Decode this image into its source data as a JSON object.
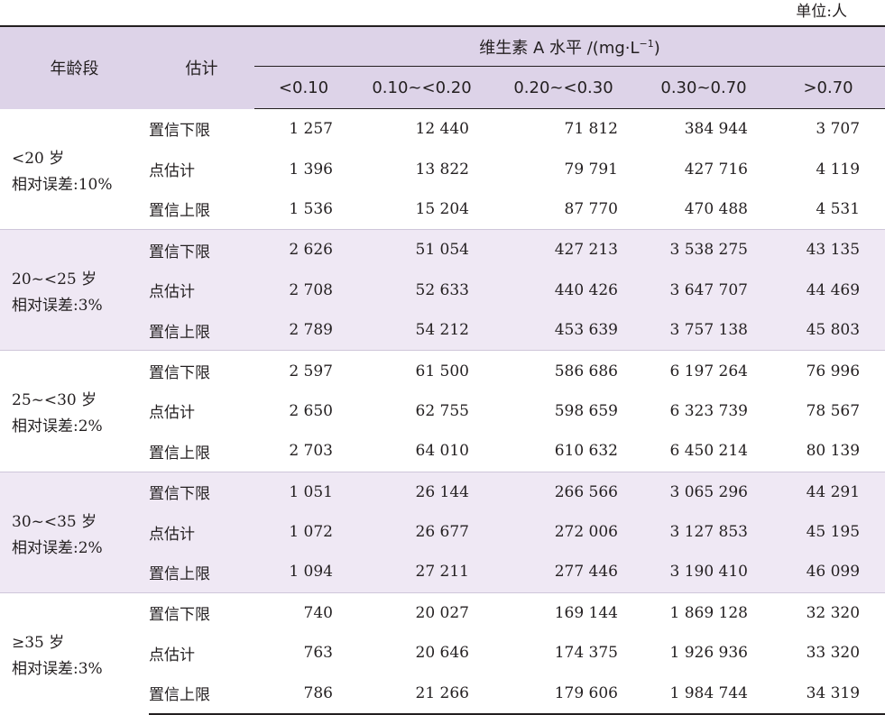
{
  "unit_label": "单位:人",
  "header": {
    "age_col": "年龄段",
    "est_col": "估计",
    "group_label": "维生素 A 水平 /(mg·L",
    "group_sup": "−1",
    "group_close": ")",
    "levels": [
      "<0.10",
      "0.10~<0.20",
      "0.20~<0.30",
      "0.30~0.70",
      ">0.70"
    ]
  },
  "groups": [
    {
      "age": "<20 岁",
      "error": "相对误差:10%",
      "rows": [
        {
          "est": "置信下限",
          "values": [
            "1 257",
            "12 440",
            "71 812",
            "384 944",
            "3 707"
          ]
        },
        {
          "est": "点估计",
          "values": [
            "1 396",
            "13 822",
            "79 791",
            "427 716",
            "4 119"
          ]
        },
        {
          "est": "置信上限",
          "values": [
            "1 536",
            "15 204",
            "87 770",
            "470 488",
            "4 531"
          ]
        }
      ]
    },
    {
      "age": "20~<25 岁",
      "error": "相对误差:3%",
      "rows": [
        {
          "est": "置信下限",
          "values": [
            "2 626",
            "51 054",
            "427 213",
            "3 538 275",
            "43 135"
          ]
        },
        {
          "est": "点估计",
          "values": [
            "2 708",
            "52 633",
            "440 426",
            "3 647 707",
            "44 469"
          ]
        },
        {
          "est": "置信上限",
          "values": [
            "2 789",
            "54 212",
            "453 639",
            "3 757 138",
            "45 803"
          ]
        }
      ]
    },
    {
      "age": "25~<30 岁",
      "error": "相对误差:2%",
      "rows": [
        {
          "est": "置信下限",
          "values": [
            "2 597",
            "61 500",
            "586 686",
            "6 197 264",
            "76 996"
          ]
        },
        {
          "est": "点估计",
          "values": [
            "2 650",
            "62 755",
            "598 659",
            "6 323 739",
            "78 567"
          ]
        },
        {
          "est": "置信上限",
          "values": [
            "2 703",
            "64 010",
            "610 632",
            "6 450 214",
            "80 139"
          ]
        }
      ]
    },
    {
      "age": "30~<35 岁",
      "error": "相对误差:2%",
      "rows": [
        {
          "est": "置信下限",
          "values": [
            "1 051",
            "26 144",
            "266 566",
            "3 065 296",
            "44 291"
          ]
        },
        {
          "est": "点估计",
          "values": [
            "1 072",
            "26 677",
            "272 006",
            "3 127 853",
            "45 195"
          ]
        },
        {
          "est": "置信上限",
          "values": [
            "1 094",
            "27 211",
            "277 446",
            "3 190 410",
            "46 099"
          ]
        }
      ]
    },
    {
      "age": "≥35 岁",
      "error": "相对误差:3%",
      "rows": [
        {
          "est": "置信下限",
          "values": [
            "740",
            "20 027",
            "169 144",
            "1 869 128",
            "32 320"
          ]
        },
        {
          "est": "点估计",
          "values": [
            "763",
            "20 646",
            "174 375",
            "1 926 936",
            "33 320"
          ]
        },
        {
          "est": "置信上限",
          "values": [
            "786",
            "21 266",
            "179 606",
            "1 984 744",
            "34 319"
          ]
        }
      ]
    }
  ],
  "colors": {
    "header_bg": "#ddd3e8",
    "shade_bg": "#efe8f4",
    "text": "#231f20"
  }
}
